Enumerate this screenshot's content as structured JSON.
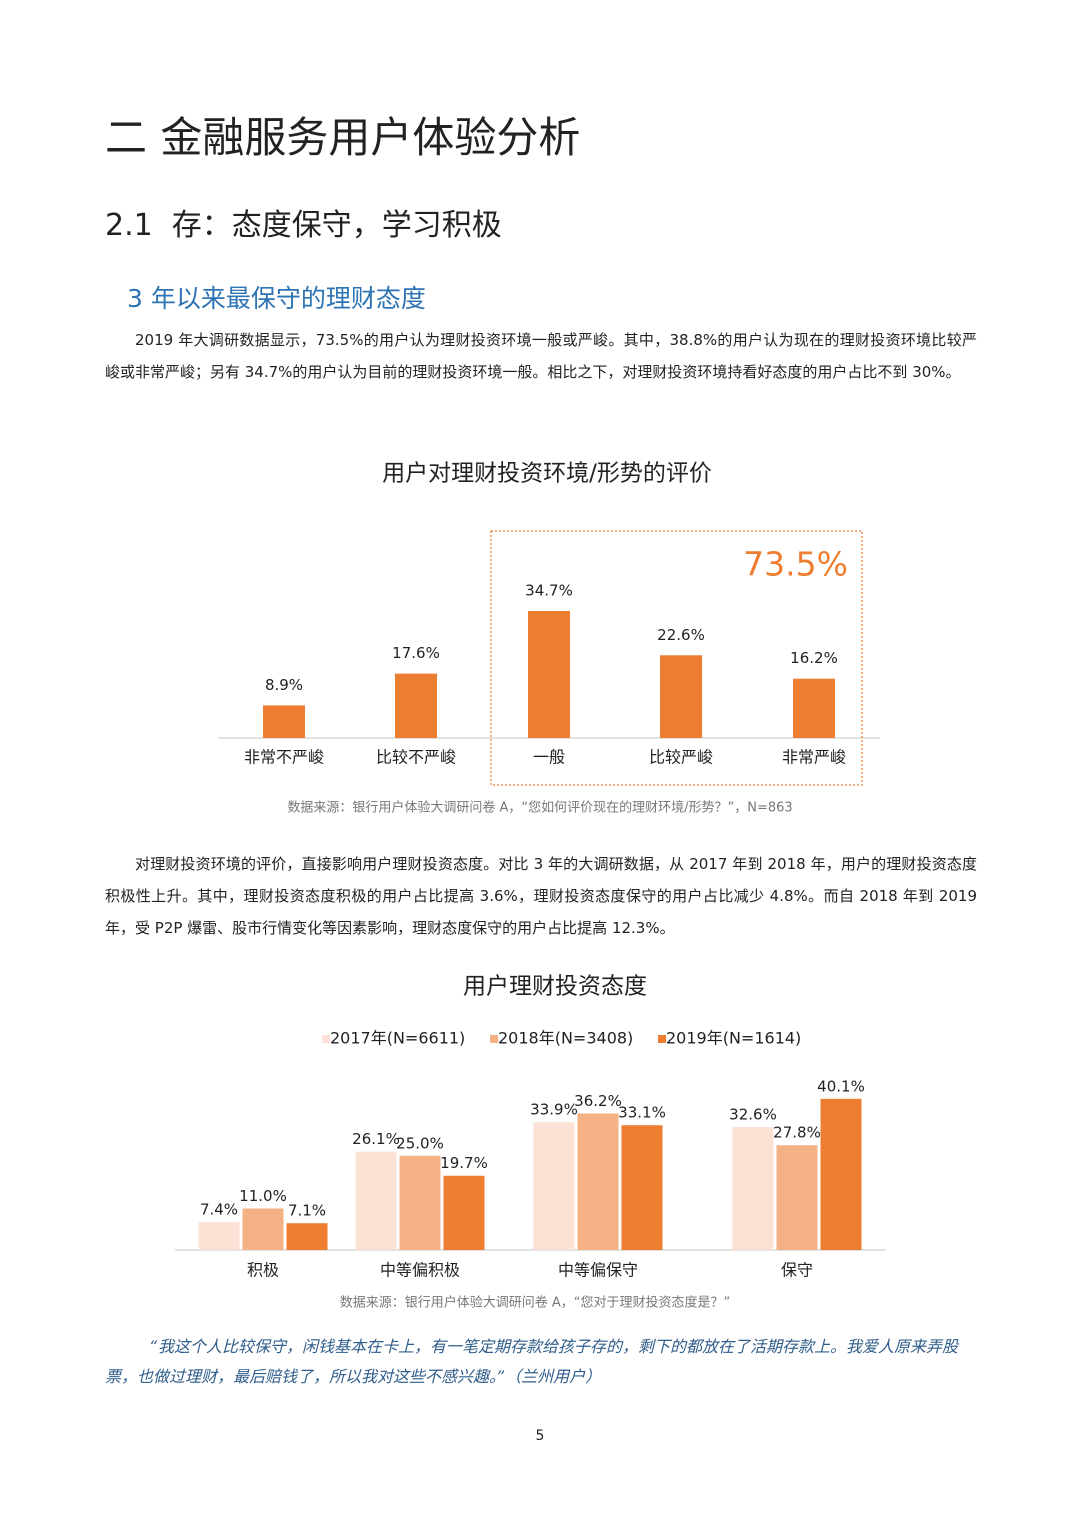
{
  "document": {
    "title": "二  金融服务用户体验分析",
    "section": "2.1  存：态度保守，学习积极",
    "subsection": "3 年以来最保守的理财态度",
    "paragraphs": [
      "2019 年大调研数据显示，73.5%的用户认为理财投资环境一般或严峻。其中，38.8%的用户认为现在的理财投资环境比较严峻或非常严峻；另有 34.7%的用户认为目前的理财投资环境一般。相比之下，对理财投资环境持看好态度的用户占比不到 30%。",
      "对理财投资环境的评价，直接影响用户理财投资态度。对比 3 年的大调研数据，从 2017 年到 2018 年，用户的理财投资态度积极性上升。其中，理财投资态度积极的用户占比提高 3.6%，理财投资态度保守的用户占比减少 4.8%。而自 2018 年到 2019 年，受 P2P 爆雷、股市行情变化等因素影响，理财态度保守的用户占比提高 12.3%。"
    ],
    "quote": "“我这个人比较保守，闲钱基本在卡上，有一笔定期存款给孩子存的，剩下的都放在了活期存款上。我爱人原来弄股票，也做过理财，最后赔钱了，所以我对这些不感兴趣。”（兰州用户）",
    "page_number": "5"
  },
  "chart_data": [
    {
      "type": "bar",
      "title": "用户对理财投资环境/形势的评价",
      "categories": [
        "非常不严峻",
        "比较不严峻",
        "一般",
        "比较严峻",
        "非常严峻"
      ],
      "values": [
        8.9,
        17.6,
        34.7,
        22.6,
        16.2
      ],
      "value_labels": [
        "8.9%",
        "17.6%",
        "34.7%",
        "22.6%",
        "16.2%"
      ],
      "color": "#ed7d31",
      "annotation": "73.5%",
      "source": "数据来源：银行用户体验大调研问卷 A，“您如何评价现在的理财环境/形势？”，N=863"
    },
    {
      "type": "grouped_bar",
      "title": "用户理财投资态度",
      "categories": [
        "积极",
        "中等偏积极",
        "中等偏保守",
        "保守"
      ],
      "series": [
        {
          "name": "2017年(N=6611)",
          "color": "#fbe2d5",
          "values": [
            7.4,
            26.1,
            33.9,
            32.6
          ],
          "value_labels": [
            "7.4%",
            "26.1%",
            "33.9%",
            "32.6%"
          ]
        },
        {
          "name": "2018年(N=3408)",
          "color": "#f4b183",
          "values": [
            11.0,
            25.0,
            36.2,
            27.8
          ],
          "value_labels": [
            "11.0%",
            "25.0%",
            "36.2%",
            "27.8%"
          ]
        },
        {
          "name": "2019年(N=1614)",
          "color": "#ed7d31",
          "values": [
            7.1,
            19.7,
            33.1,
            40.1
          ],
          "value_labels": [
            "7.1%",
            "19.7%",
            "33.1%",
            "40.1%"
          ]
        }
      ],
      "source": "数据来源：银行用户体验大调研问卷 A，“您对于理财投资态度是？”"
    }
  ]
}
